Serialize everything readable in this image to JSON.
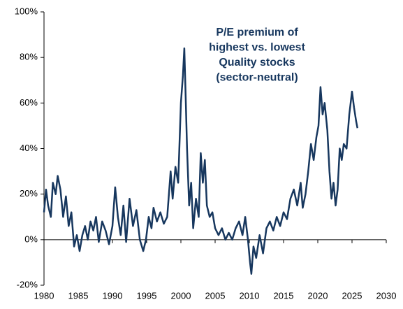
{
  "chart_data": {
    "type": "line",
    "title": [
      "P/E premium of",
      "highest vs. lowest",
      "Quality stocks",
      "(sector-neutral)"
    ],
    "x": [
      1980.0,
      1980.3,
      1980.6,
      1981.0,
      1981.3,
      1981.7,
      1982.0,
      1982.4,
      1982.8,
      1983.2,
      1983.6,
      1984.0,
      1984.4,
      1984.8,
      1985.2,
      1985.6,
      1986.0,
      1986.4,
      1986.8,
      1987.2,
      1987.6,
      1988.0,
      1988.5,
      1989.0,
      1989.5,
      1990.0,
      1990.4,
      1990.8,
      1991.2,
      1991.6,
      1992.0,
      1992.5,
      1993.0,
      1993.5,
      1994.0,
      1994.5,
      1994.9,
      1995.3,
      1995.7,
      1996.0,
      1996.5,
      1997.0,
      1997.5,
      1998.0,
      1998.5,
      1998.8,
      1999.2,
      1999.6,
      2000.0,
      2000.3,
      2000.5,
      2000.7,
      2000.9,
      2001.2,
      2001.5,
      2001.8,
      2002.2,
      2002.6,
      2002.9,
      2003.2,
      2003.5,
      2003.8,
      2004.2,
      2004.6,
      2005.0,
      2005.5,
      2006.0,
      2006.5,
      2007.0,
      2007.5,
      2008.0,
      2008.5,
      2009.0,
      2009.4,
      2009.8,
      2010.1,
      2010.3,
      2010.6,
      2011.0,
      2011.5,
      2012.0,
      2012.5,
      2013.0,
      2013.5,
      2014.0,
      2014.5,
      2015.0,
      2015.5,
      2016.0,
      2016.5,
      2017.0,
      2017.5,
      2017.8,
      2018.2,
      2018.6,
      2019.0,
      2019.4,
      2019.8,
      2020.1,
      2020.4,
      2020.7,
      2021.0,
      2021.4,
      2021.7,
      2022.0,
      2022.3,
      2022.6,
      2022.9,
      2023.2,
      2023.5,
      2023.8,
      2024.2,
      2024.6,
      2025.0,
      2025.3,
      2025.6,
      2025.8
    ],
    "series": [
      {
        "name": "P/E premium",
        "color": "#17375e",
        "values": [
          12,
          22,
          15,
          10,
          25,
          20,
          28,
          22,
          10,
          19,
          6,
          12,
          -3,
          2,
          -5,
          2,
          6,
          0,
          8,
          4,
          10,
          -1,
          8,
          4,
          -2,
          6,
          23,
          10,
          2,
          15,
          -1,
          18,
          6,
          13,
          0,
          -5,
          0,
          10,
          5,
          14,
          8,
          12,
          7,
          10,
          30,
          18,
          32,
          25,
          60,
          72,
          84,
          62,
          40,
          15,
          25,
          5,
          18,
          10,
          38,
          25,
          35,
          15,
          10,
          12,
          5,
          2,
          5,
          0,
          3,
          0,
          5,
          8,
          2,
          10,
          0,
          -10,
          -15,
          -3,
          -8,
          2,
          -6,
          5,
          8,
          4,
          10,
          6,
          12,
          9,
          18,
          22,
          15,
          25,
          14,
          20,
          30,
          42,
          35,
          45,
          50,
          67,
          55,
          60,
          48,
          30,
          18,
          25,
          15,
          22,
          40,
          35,
          42,
          40,
          55,
          65,
          58,
          52,
          49
        ]
      }
    ],
    "xlim": [
      1980,
      2030
    ],
    "xticks": [
      1980,
      1985,
      1990,
      1995,
      2000,
      2005,
      2010,
      2015,
      2020,
      2025,
      2030
    ],
    "ylim": [
      -20,
      100
    ],
    "yticks": [
      {
        "value": -20,
        "label": "-20%"
      },
      {
        "value": 0,
        "label": "0%"
      },
      {
        "value": 20,
        "label": "20%"
      },
      {
        "value": 40,
        "label": "40%"
      },
      {
        "value": 60,
        "label": "60%"
      },
      {
        "value": 80,
        "label": "80%"
      },
      {
        "value": 100,
        "label": "100%"
      }
    ]
  }
}
